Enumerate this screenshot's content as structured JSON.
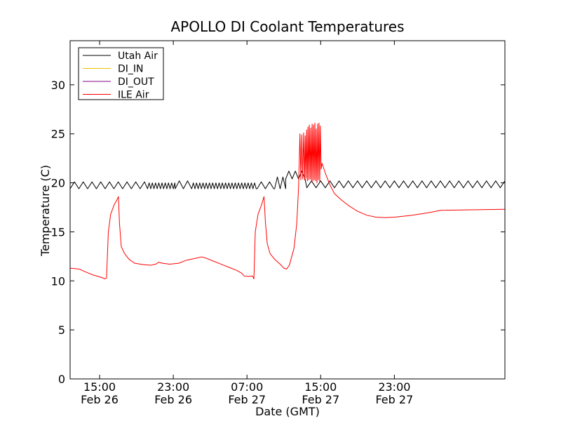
{
  "chart_data": {
    "type": "line",
    "title": "APOLLO DI Coolant Temperatures",
    "xlabel": "Date (GMT)",
    "ylabel": "Temperature (C)",
    "ylim": [
      0,
      34.5
    ],
    "xlim": [
      11.8,
      59.0
    ],
    "yticks": [
      0,
      5,
      10,
      15,
      20,
      25,
      30
    ],
    "ytick_labels": [
      "0",
      "5",
      "10",
      "15",
      "20",
      "25",
      "30"
    ],
    "xticks": [
      {
        "pos": 15,
        "time": "15:00",
        "date": "Feb 26"
      },
      {
        "pos": 23,
        "time": "23:00",
        "date": "Feb 26"
      },
      {
        "pos": 31,
        "time": "07:00",
        "date": "Feb 27"
      },
      {
        "pos": 39,
        "time": "15:00",
        "date": "Feb 27"
      },
      {
        "pos": 47,
        "time": "23:00",
        "date": "Feb 27"
      }
    ],
    "legend_position": "top-left",
    "series": [
      {
        "name": "Utah Air",
        "color": "#000000",
        "style": "zigzag",
        "segments": [
          {
            "x0": 11.8,
            "x1": 20.2,
            "period": 0.95,
            "lo": 19.4,
            "hi": 20.1
          },
          {
            "x0": 20.2,
            "x1": 23.2,
            "period": 0.35,
            "lo": 19.4,
            "hi": 20.0
          },
          {
            "x0": 23.2,
            "x1": 25.0,
            "period": 0.9,
            "lo": 19.4,
            "hi": 20.2
          },
          {
            "x0": 25.0,
            "x1": 32.1,
            "period": 0.35,
            "lo": 19.4,
            "hi": 20.0
          },
          {
            "x0": 32.1,
            "x1": 34.0,
            "period": 0.9,
            "lo": 19.4,
            "hi": 20.1
          },
          {
            "x0": 34.0,
            "x1": 35.2,
            "period": 0.6,
            "lo": 19.4,
            "hi": 20.6
          },
          {
            "x0": 35.2,
            "x1": 37.5,
            "period": 0.7,
            "lo": 20.4,
            "hi": 21.2
          },
          {
            "x0": 37.5,
            "x1": 59.0,
            "period": 1.0,
            "lo": 19.5,
            "hi": 20.2
          }
        ]
      },
      {
        "name": "DI_IN",
        "color": "#e8c000",
        "points": []
      },
      {
        "name": "DI_OUT",
        "color": "#800080",
        "points": []
      },
      {
        "name": "ILE Air",
        "color": "#ff0000",
        "points": [
          [
            11.8,
            11.3
          ],
          [
            12.8,
            11.2
          ],
          [
            13.5,
            10.9
          ],
          [
            14.3,
            10.6
          ],
          [
            15.2,
            10.35
          ],
          [
            15.6,
            10.2
          ],
          [
            15.75,
            10.3
          ],
          [
            15.95,
            15.0
          ],
          [
            16.2,
            16.8
          ],
          [
            16.6,
            17.8
          ],
          [
            16.9,
            18.3
          ],
          [
            17.05,
            18.6
          ],
          [
            17.15,
            16.0
          ],
          [
            17.35,
            13.5
          ],
          [
            17.7,
            12.8
          ],
          [
            18.2,
            12.2
          ],
          [
            18.8,
            11.8
          ],
          [
            19.8,
            11.65
          ],
          [
            20.6,
            11.6
          ],
          [
            21.1,
            11.7
          ],
          [
            21.4,
            11.9
          ],
          [
            21.8,
            11.8
          ],
          [
            22.6,
            11.7
          ],
          [
            23.6,
            11.8
          ],
          [
            24.4,
            12.1
          ],
          [
            25.4,
            12.3
          ],
          [
            26.1,
            12.45
          ],
          [
            26.6,
            12.3
          ],
          [
            27.4,
            12.0
          ],
          [
            28.2,
            11.7
          ],
          [
            29.0,
            11.4
          ],
          [
            29.8,
            11.1
          ],
          [
            30.4,
            10.8
          ],
          [
            30.7,
            10.5
          ],
          [
            31.2,
            10.45
          ],
          [
            31.6,
            10.5
          ],
          [
            31.75,
            10.2
          ],
          [
            31.9,
            15.0
          ],
          [
            32.2,
            16.8
          ],
          [
            32.6,
            17.8
          ],
          [
            32.85,
            18.6
          ],
          [
            33.0,
            16.0
          ],
          [
            33.2,
            13.8
          ],
          [
            33.5,
            12.8
          ],
          [
            34.0,
            12.2
          ],
          [
            34.6,
            11.7
          ],
          [
            35.0,
            11.3
          ],
          [
            35.3,
            11.2
          ],
          [
            35.6,
            11.6
          ],
          [
            36.1,
            13.3
          ],
          [
            36.4,
            15.8
          ],
          [
            36.6,
            19.5
          ],
          [
            36.75,
            25.0
          ],
          [
            36.85,
            20.3
          ],
          [
            36.95,
            24.9
          ],
          [
            37.05,
            20.4
          ],
          [
            37.15,
            25.1
          ],
          [
            37.25,
            20.3
          ],
          [
            37.32,
            24.8
          ],
          [
            37.4,
            20.5
          ],
          [
            37.47,
            25.4
          ],
          [
            37.55,
            20.2
          ],
          [
            37.62,
            25.7
          ],
          [
            37.7,
            20.3
          ],
          [
            37.77,
            25.9
          ],
          [
            37.85,
            20.4
          ],
          [
            37.92,
            25.6
          ],
          [
            38.0,
            20.1
          ],
          [
            38.07,
            26.0
          ],
          [
            38.15,
            20.2
          ],
          [
            38.22,
            25.9
          ],
          [
            38.3,
            20.3
          ],
          [
            38.37,
            26.1
          ],
          [
            38.45,
            20.2
          ],
          [
            38.52,
            25.5
          ],
          [
            38.6,
            20.0
          ],
          [
            38.67,
            26.0
          ],
          [
            38.75,
            20.3
          ],
          [
            38.82,
            26.1
          ],
          [
            38.9,
            20.1
          ],
          [
            38.97,
            25.8
          ],
          [
            39.05,
            21.4
          ],
          [
            39.15,
            22.0
          ],
          [
            39.5,
            21.0
          ],
          [
            40.0,
            19.8
          ],
          [
            40.5,
            18.9
          ],
          [
            41.2,
            18.3
          ],
          [
            42.0,
            17.7
          ],
          [
            43.0,
            17.1
          ],
          [
            44.0,
            16.7
          ],
          [
            45.0,
            16.5
          ],
          [
            46.0,
            16.45
          ],
          [
            47.0,
            16.5
          ],
          [
            48.0,
            16.6
          ],
          [
            49.0,
            16.7
          ],
          [
            50.0,
            16.85
          ],
          [
            51.0,
            17.0
          ],
          [
            52.0,
            17.2
          ],
          [
            59.0,
            17.3
          ]
        ]
      }
    ]
  }
}
